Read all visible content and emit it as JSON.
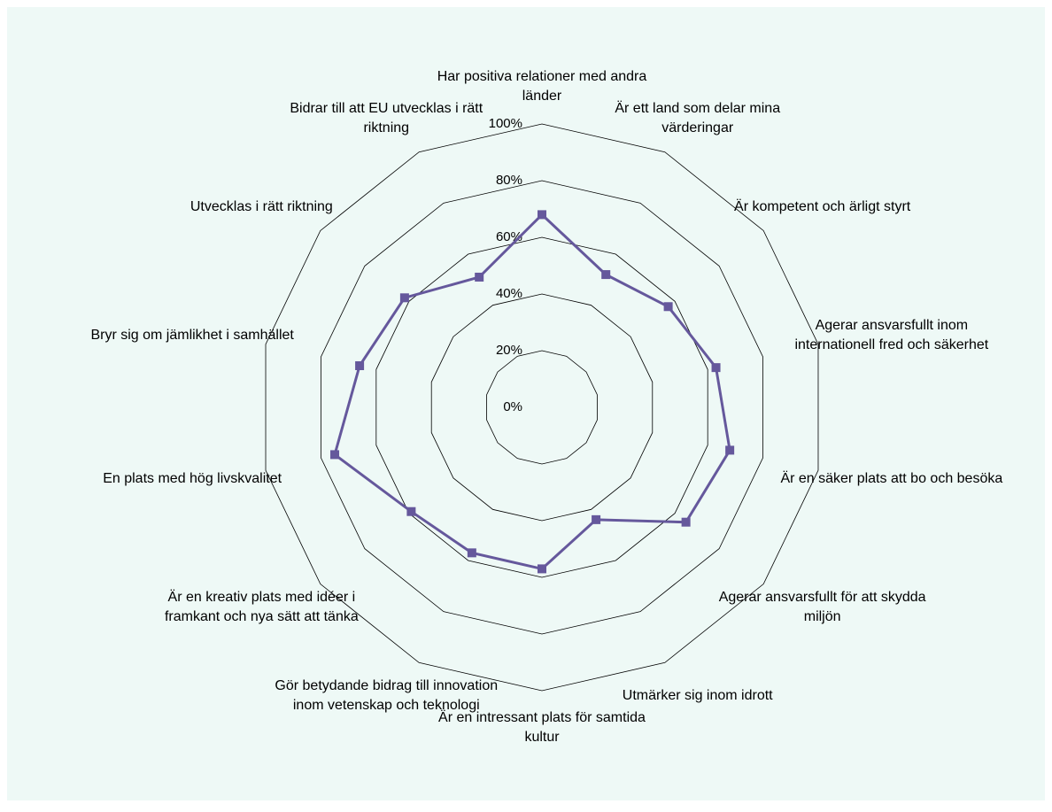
{
  "chart_data": {
    "type": "radar",
    "categories": [
      "Har positiva relationer med andra länder",
      "Är ett land som delar mina värderingar",
      "Är kompetent och ärligt styrt",
      "Agerar ansvarsfullt inom internationell fred och säkerhet",
      "Är en säker plats att bo och besöka",
      "Agerar ansvarsfullt för att skydda miljön",
      "Utmärker sig inom idrott",
      "Är en intressant plats för samtida kultur",
      "Gör betydande bidrag till innovation inom vetenskap och teknologi",
      "Är en kreativ plats med idéer i framkant och nya sätt att tänka",
      "En plats med hög livskvalitet",
      "Bryr sig om jämlikhet i samhället",
      "Utvecklas i rätt riktning",
      "Bidrar till att EU utvecklas i rätt riktning"
    ],
    "values": [
      68,
      52,
      57,
      63,
      68,
      65,
      44,
      57,
      57,
      59,
      75,
      66,
      62,
      51
    ],
    "color": "#65589c",
    "ylim": [
      0,
      100
    ],
    "yticks": [
      {
        "value": 0,
        "label": "0%"
      },
      {
        "value": 20,
        "label": "20%"
      },
      {
        "value": 40,
        "label": "40%"
      },
      {
        "value": 60,
        "label": "60%"
      },
      {
        "value": 80,
        "label": "80%"
      },
      {
        "value": 100,
        "label": "100%"
      }
    ],
    "grid": true
  }
}
